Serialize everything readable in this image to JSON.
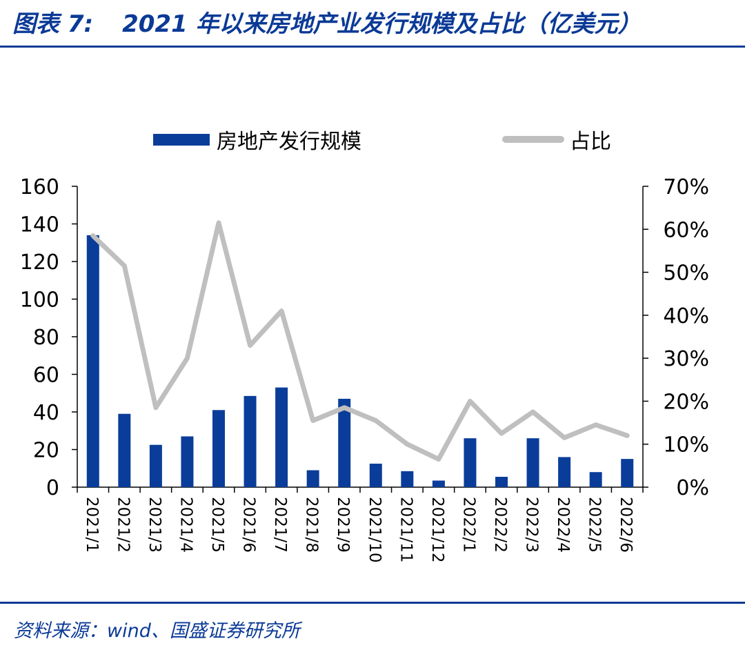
{
  "figure": {
    "label": "图表 7:",
    "title": "2021 年以来房地产业发行规模及占比（亿美元）",
    "source": "资料来源：wind、国盛证券研究所"
  },
  "colors": {
    "accent": "#0b3a96",
    "bar": "#0a3d9a",
    "line": "#bfbfbf"
  },
  "chart_data": {
    "type": "bar",
    "title": "2021 年以来房地产业发行规模及占比（亿美元）",
    "categories": [
      "2021/1",
      "2021/2",
      "2021/3",
      "2021/4",
      "2021/5",
      "2021/6",
      "2021/7",
      "2021/8",
      "2021/9",
      "2021/10",
      "2021/11",
      "2021/12",
      "2022/1",
      "2022/2",
      "2022/3",
      "2022/4",
      "2022/5",
      "2022/6"
    ],
    "series": [
      {
        "name": "房地产发行规模",
        "type": "bar",
        "axis": "left",
        "values": [
          134,
          39,
          22.5,
          27,
          41,
          48.5,
          53,
          9,
          47,
          12.5,
          8.5,
          3.5,
          26,
          5.5,
          26,
          16,
          8,
          15
        ]
      },
      {
        "name": "占比",
        "type": "line",
        "axis": "right",
        "values": [
          58.5,
          51.5,
          18.5,
          30,
          61.5,
          33,
          41,
          15.5,
          18.5,
          15.5,
          10,
          6.5,
          20,
          12.5,
          17.5,
          11.5,
          14.5,
          12
        ]
      }
    ],
    "left_axis": {
      "ylim": [
        0,
        160
      ],
      "ticks": [
        "0",
        "20",
        "40",
        "60",
        "80",
        "100",
        "120",
        "140",
        "160"
      ]
    },
    "right_axis": {
      "ylim": [
        0,
        70
      ],
      "ticks": [
        "0%",
        "10%",
        "20%",
        "30%",
        "40%",
        "50%",
        "60%",
        "70%"
      ]
    },
    "legend_placement": "top",
    "grid": false
  }
}
